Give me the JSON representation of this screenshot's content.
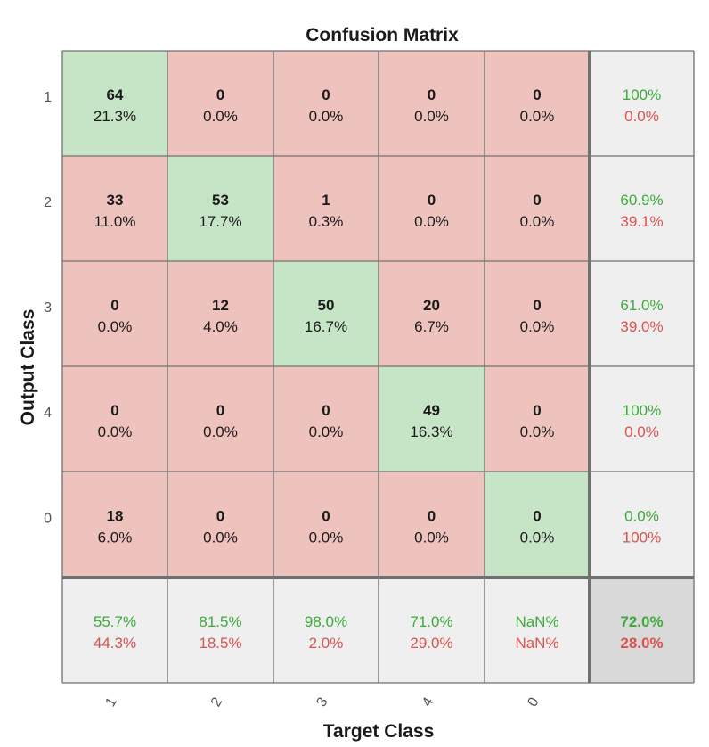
{
  "chart_data": {
    "type": "heatmap",
    "title": "Confusion Matrix",
    "xlabel": "Target Class",
    "ylabel": "Output Class",
    "classes": [
      "1",
      "2",
      "3",
      "4",
      "0"
    ],
    "cells": [
      [
        {
          "count": "64",
          "pct": "21.3%"
        },
        {
          "count": "0",
          "pct": "0.0%"
        },
        {
          "count": "0",
          "pct": "0.0%"
        },
        {
          "count": "0",
          "pct": "0.0%"
        },
        {
          "count": "0",
          "pct": "0.0%"
        }
      ],
      [
        {
          "count": "33",
          "pct": "11.0%"
        },
        {
          "count": "53",
          "pct": "17.7%"
        },
        {
          "count": "1",
          "pct": "0.3%"
        },
        {
          "count": "0",
          "pct": "0.0%"
        },
        {
          "count": "0",
          "pct": "0.0%"
        }
      ],
      [
        {
          "count": "0",
          "pct": "0.0%"
        },
        {
          "count": "12",
          "pct": "4.0%"
        },
        {
          "count": "50",
          "pct": "16.7%"
        },
        {
          "count": "20",
          "pct": "6.7%"
        },
        {
          "count": "0",
          "pct": "0.0%"
        }
      ],
      [
        {
          "count": "0",
          "pct": "0.0%"
        },
        {
          "count": "0",
          "pct": "0.0%"
        },
        {
          "count": "0",
          "pct": "0.0%"
        },
        {
          "count": "49",
          "pct": "16.3%"
        },
        {
          "count": "0",
          "pct": "0.0%"
        }
      ],
      [
        {
          "count": "18",
          "pct": "6.0%"
        },
        {
          "count": "0",
          "pct": "0.0%"
        },
        {
          "count": "0",
          "pct": "0.0%"
        },
        {
          "count": "0",
          "pct": "0.0%"
        },
        {
          "count": "0",
          "pct": "0.0%"
        }
      ]
    ],
    "row_summary": [
      {
        "correct": "100%",
        "wrong": "0.0%"
      },
      {
        "correct": "60.9%",
        "wrong": "39.1%"
      },
      {
        "correct": "61.0%",
        "wrong": "39.0%"
      },
      {
        "correct": "100%",
        "wrong": "0.0%"
      },
      {
        "correct": "0.0%",
        "wrong": "100%"
      }
    ],
    "col_summary": [
      {
        "correct": "55.7%",
        "wrong": "44.3%"
      },
      {
        "correct": "81.5%",
        "wrong": "18.5%"
      },
      {
        "correct": "98.0%",
        "wrong": "2.0%"
      },
      {
        "correct": "71.0%",
        "wrong": "29.0%"
      },
      {
        "correct": "NaN%",
        "wrong": "NaN%"
      }
    ],
    "overall": {
      "correct": "72.0%",
      "wrong": "28.0%"
    }
  },
  "colors": {
    "diagonal": "#c6e5c6",
    "off_diagonal": "#efc3bd",
    "summary": "#efefef",
    "overall": "#d9d9d9",
    "grid": "#707070",
    "green_text": "#3cab3c",
    "red_text": "#d9534f",
    "text": "#1a1a1a"
  }
}
